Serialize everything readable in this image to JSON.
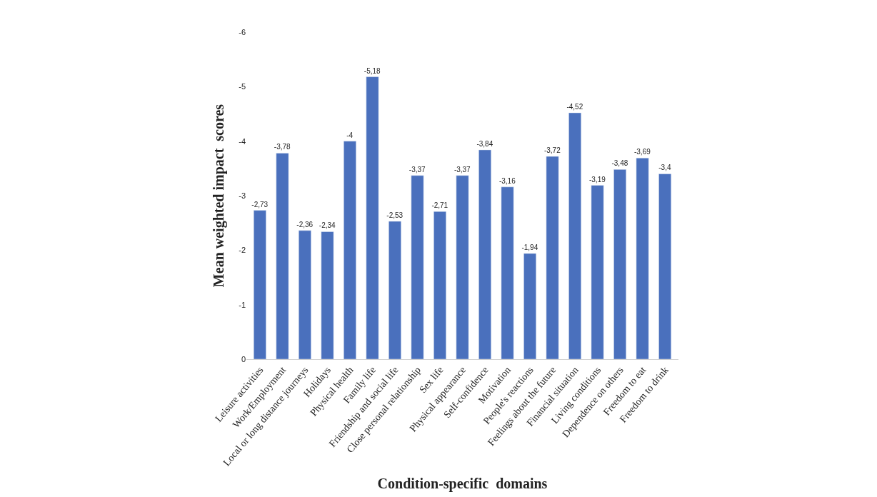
{
  "chart_data": {
    "type": "bar",
    "xlabel": "Condition-specific  domains",
    "ylabel": "Mean weighted impact  scores",
    "categories": [
      "Leisure activities",
      "Work/Employment",
      "Local or long distance journeys",
      "Holidays",
      "Physical health",
      "Family life",
      "Friendship and social life",
      "Close personal relationship",
      "Sex life",
      "Physical appearance",
      "Self-confidence",
      "Motivation",
      "People's reactions",
      "Feelings about the future",
      "Financial situation",
      "Living conditions",
      "Dependence on others",
      "Freedom to eat",
      "Freedom to drink"
    ],
    "values": [
      -2.73,
      -3.78,
      -2.36,
      -2.34,
      -4,
      -5.18,
      -2.53,
      -3.37,
      -2.71,
      -3.37,
      -3.84,
      -3.16,
      -1.94,
      -3.72,
      -4.52,
      -3.19,
      -3.48,
      -3.69,
      -3.4
    ],
    "value_labels": [
      "-2,73",
      "-3,78",
      "-2,36",
      "-2,34",
      "-4",
      "-5,18",
      "-2,53",
      "-3,37",
      "-2,71",
      "-3,37",
      "-3,84",
      "-3,16",
      "-1,94",
      "-3,72",
      "-4,52",
      "-3,19",
      "-3,48",
      "-3,69",
      "-3,4"
    ],
    "color": "#4a70bd",
    "ylim": [
      0,
      -6
    ],
    "yticks": [
      0,
      -1,
      -2,
      -3,
      -4,
      -5,
      -6
    ]
  }
}
